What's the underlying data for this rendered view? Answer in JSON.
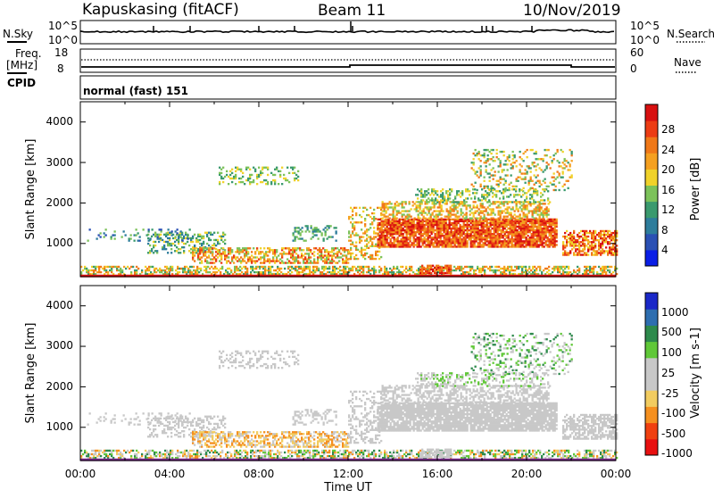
{
  "header": {
    "station": "Kapuskasing (fitACF)",
    "beam": "Beam 11",
    "date": "10/Nov/2019"
  },
  "left_labels": {
    "nsky": "N.Sky",
    "freq": "Freq.",
    "freq_unit": "[MHz]",
    "cpid": "CPID"
  },
  "right_labels": {
    "nsearch": "N.Search",
    "nave": "Nave"
  },
  "noise_panel": {
    "left_ticks": [
      "10^5",
      "10^0"
    ],
    "right_ticks": [
      "10^5",
      "10^0"
    ]
  },
  "freq_panel": {
    "left_ticks": [
      "18",
      "8"
    ],
    "right_ticks": [
      "60",
      "0"
    ]
  },
  "cpid_panel": {
    "label": "normal (fast) 151"
  },
  "colors": {
    "power_scale": [
      "#0a1ee6",
      "#2a50b4",
      "#2e7d9c",
      "#3a9a6e",
      "#7cc25a",
      "#f0d22a",
      "#f5a020",
      "#f07818",
      "#ec3c14",
      "#d81010"
    ],
    "velocity_scale": [
      "#e81010",
      "#f04010",
      "#f59020",
      "#f2cc60",
      "#c8c8c8",
      "#c8c8c8",
      "#60c838",
      "#2e8a4c",
      "#2e6eb0",
      "#1a28c8"
    ]
  },
  "chart_data": [
    {
      "type": "heatmap",
      "name": "power",
      "ylabel": "Slant Range [km]",
      "xlabel": "",
      "ylim": [
        180,
        4500
      ],
      "xlim": [
        0,
        24
      ],
      "yticks": [
        "4000",
        "3000",
        "2000",
        "1000"
      ],
      "colorbar": {
        "label": "Power [dB]",
        "ticks": [
          "28",
          "24",
          "20",
          "16",
          "12",
          "8",
          "4"
        ],
        "range": [
          0,
          32
        ]
      }
    },
    {
      "type": "heatmap",
      "name": "velocity",
      "ylabel": "Slant Range [km]",
      "xlabel": "Time UT",
      "ylim": [
        180,
        4500
      ],
      "xlim": [
        0,
        24
      ],
      "yticks": [
        "4000",
        "3000",
        "2000",
        "1000"
      ],
      "xticks": [
        "00:00",
        "04:00",
        "08:00",
        "12:00",
        "16:00",
        "20:00",
        "00:00"
      ],
      "colorbar": {
        "label": "Velocity [m s-1]",
        "ticks": [
          "1000",
          "500",
          "100",
          "25",
          "-25",
          "-100",
          "-500",
          "-1000"
        ]
      }
    }
  ]
}
